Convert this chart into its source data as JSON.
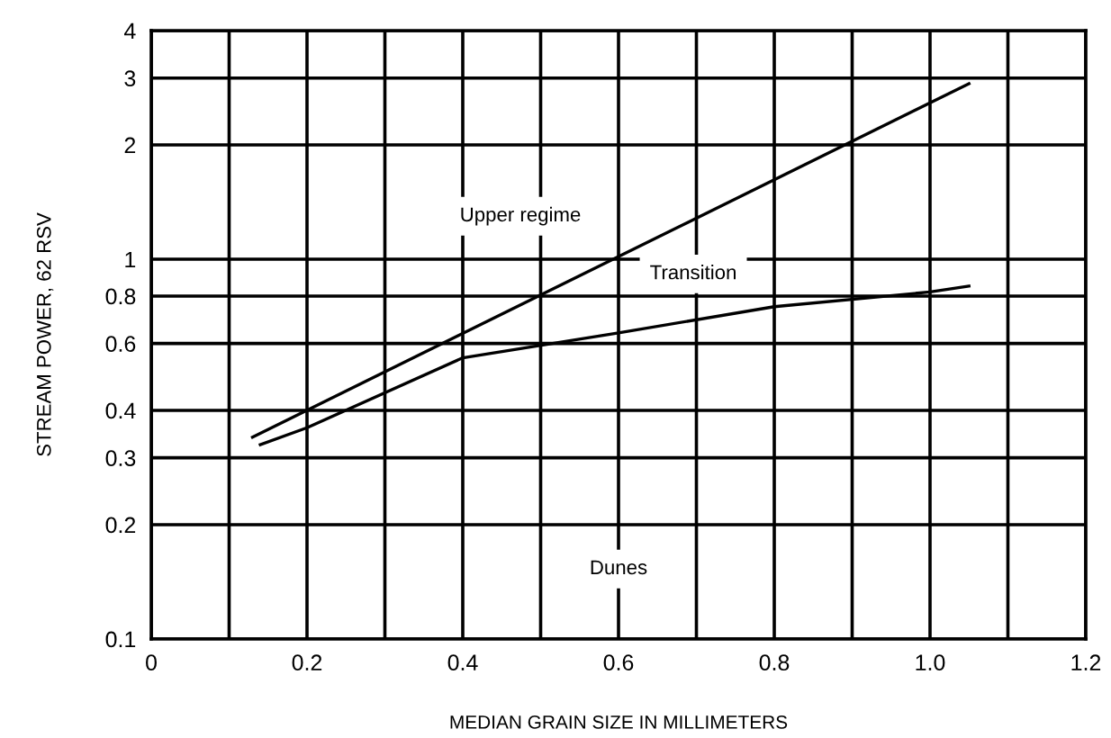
{
  "chart_data": {
    "type": "line",
    "xlabel": "MEDIAN GRAIN SIZE IN MILLIMETERS",
    "ylabel": "STREAM POWER, 62 RSV",
    "log": "y",
    "xlim": [
      0,
      1.2
    ],
    "xticks": [
      0,
      {
        "value": 0.1,
        "label": null
      },
      0.2,
      {
        "value": 0.3,
        "label": null
      },
      0.4,
      {
        "value": 0.5,
        "label": null
      },
      0.6,
      {
        "value": 0.7,
        "label": null
      },
      0.8,
      {
        "value": 0.9,
        "label": null
      },
      {
        "value": 1.0,
        "label": "1.0"
      },
      {
        "value": 1.1,
        "label": null
      },
      1.2
    ],
    "ylim": [
      0.1,
      4
    ],
    "yticks": [
      0.1,
      0.2,
      0.3,
      0.4,
      0.6,
      0.8,
      1,
      2,
      3,
      4
    ],
    "grid": true,
    "marker": "none",
    "line_style": "solid",
    "series": [
      {
        "color": "#000000",
        "x": [
          0.13,
          1.05
        ],
        "values": [
          0.34,
          2.9
        ]
      },
      {
        "color": "#000000",
        "x": [
          0.14,
          0.2,
          0.4,
          0.6,
          0.8,
          1.0,
          1.05
        ],
        "values": [
          0.325,
          0.36,
          0.55,
          0.64,
          0.75,
          0.82,
          0.85
        ]
      }
    ],
    "annotations": [
      "Upper regime",
      "Transition",
      "Dunes"
    ]
  }
}
